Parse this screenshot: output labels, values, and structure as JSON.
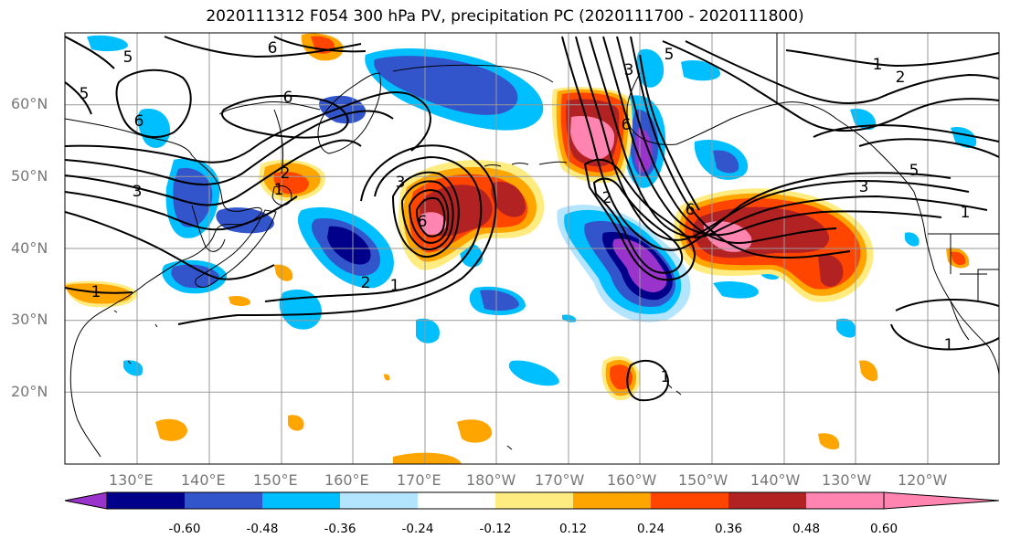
{
  "title": "2020111312 F054 300 hPa PV, precipitation PC (2020111700 - 2020111800)",
  "map": {
    "lat_labels": [
      "60°N",
      "50°N",
      "40°N",
      "30°N",
      "20°N"
    ],
    "lon_labels": [
      "130°E",
      "140°E",
      "150°E",
      "160°E",
      "170°E",
      "180°W",
      "170°W",
      "160°W",
      "150°W",
      "140°W",
      "130°W",
      "120°W"
    ],
    "pv_contour_labels": [
      "5",
      "6",
      "6",
      "6",
      "5",
      "3",
      "2",
      "1",
      "3",
      "6",
      "2",
      "1",
      "3",
      "5",
      "6",
      "2",
      "1",
      "2",
      "1",
      "6",
      "5",
      "3",
      "1",
      "1",
      "1"
    ]
  },
  "colorbar": {
    "colors": [
      "#9933cc",
      "#00008b",
      "#3355cc",
      "#00bfff",
      "#b3e5ff",
      "#ffffff",
      "#ffec80",
      "#ffa500",
      "#ff4500",
      "#b22222",
      "#ff85b0"
    ],
    "tick_labels": [
      "-0.60",
      "-0.48",
      "-0.36",
      "-0.24",
      "-0.12",
      "0.12",
      "0.24",
      "0.36",
      "0.48",
      "0.60"
    ]
  }
}
